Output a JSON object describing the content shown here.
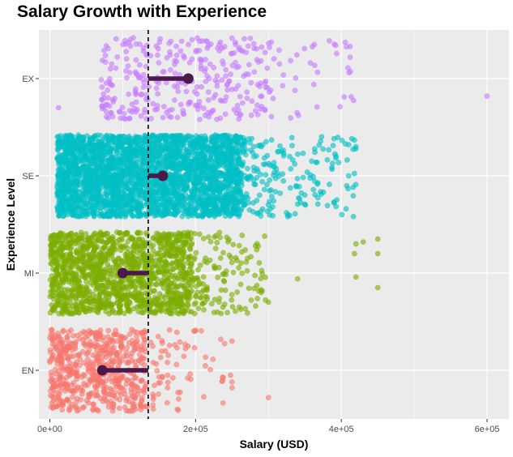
{
  "chart_data": {
    "type": "scatter",
    "title": "Salary Growth with Experience",
    "xlabel": "Salary (USD)",
    "ylabel": "Experience Level",
    "xlim": [
      -15000,
      630000
    ],
    "x_ticks": [
      {
        "value": 0,
        "label": "0e+00"
      },
      {
        "value": 200000,
        "label": "2e+05"
      },
      {
        "value": 400000,
        "label": "4e+05"
      },
      {
        "value": 600000,
        "label": "6e+05"
      }
    ],
    "categories": [
      "EN",
      "MI",
      "SE",
      "EX"
    ],
    "series": [
      {
        "category": "EN",
        "color": "#F8766D",
        "point_count": 650,
        "bulk_range": [
          0,
          130000
        ],
        "tail_range": [
          130000,
          240000
        ],
        "tail_count": 80,
        "outliers": [
          {
            "x": 250000,
            "jitter": -0.3
          },
          {
            "x": 250000,
            "jitter": 0.12
          },
          {
            "x": 250000,
            "jitter": 0.18
          },
          {
            "x": 248000,
            "jitter": 0.05
          },
          {
            "x": 300000,
            "jitter": 0.28
          }
        ],
        "median": 72000
      },
      {
        "category": "MI",
        "color": "#7CAE00",
        "point_count": 1500,
        "bulk_range": [
          0,
          190000
        ],
        "tail_range": [
          190000,
          300000
        ],
        "tail_count": 160,
        "outliers": [
          {
            "x": 340000,
            "jitter": 0.06
          },
          {
            "x": 300000,
            "jitter": 0.3
          },
          {
            "x": 420000,
            "jitter": -0.3
          },
          {
            "x": 430000,
            "jitter": -0.32
          },
          {
            "x": 450000,
            "jitter": -0.35
          },
          {
            "x": 450000,
            "jitter": -0.2
          },
          {
            "x": 450000,
            "jitter": 0.15
          },
          {
            "x": 418000,
            "jitter": -0.2
          },
          {
            "x": 420000,
            "jitter": 0.04
          },
          {
            "x": 290000,
            "jitter": 0.2
          }
        ],
        "median": 100000
      },
      {
        "category": "SE",
        "color": "#00BFC4",
        "point_count": 3100,
        "bulk_range": [
          10000,
          260000
        ],
        "tail_range": [
          260000,
          420000
        ],
        "tail_count": 220,
        "outliers": [
          {
            "x": 410000,
            "jitter": -0.32
          },
          {
            "x": 420000,
            "jitter": -0.3
          },
          {
            "x": 410000,
            "jitter": 0.0
          },
          {
            "x": 390000,
            "jitter": 0.27
          }
        ],
        "median": 155000
      },
      {
        "category": "EX",
        "color": "#C77CFF",
        "point_count": 350,
        "bulk_range": [
          70000,
          300000
        ],
        "tail_range": [
          300000,
          420000
        ],
        "tail_count": 40,
        "outliers": [
          {
            "x": 12000,
            "jitter": 0.3
          },
          {
            "x": 412000,
            "jitter": -0.33
          },
          {
            "x": 412000,
            "jitter": -0.22
          },
          {
            "x": 600000,
            "jitter": 0.18
          }
        ],
        "median": 190000
      }
    ],
    "reference_line": {
      "x": 135000,
      "style": "dashed",
      "color": "#000000"
    },
    "median_marker_color": "#4B1A4A",
    "panel_background": "#EBEBEB",
    "grid": true,
    "legend": "none"
  }
}
